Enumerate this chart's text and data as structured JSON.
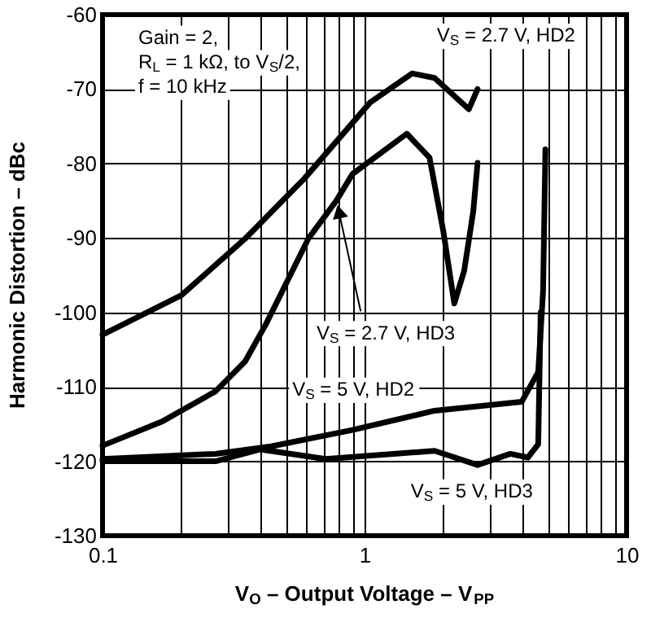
{
  "chart_data": {
    "type": "line",
    "xlabel": "V$_{O}$ – Output Voltage – V$_{PP}$",
    "ylabel": "Harmonic Distortion – dBc",
    "annotations": [
      "Gain = 2,",
      "R$_{L}$ = 1 kΩ, to V$_{S}$/2,",
      "f = 10 kHz"
    ],
    "series": [
      {
        "name": "V$_{S}$ = 2.7 V, HD2",
        "color": "#000000",
        "x": [
          0.1,
          0.2,
          0.35,
          0.59,
          1.05,
          1.52,
          1.85,
          2.5,
          2.7
        ],
        "values": [
          -103,
          -97.7,
          -90.1,
          -82,
          -71.8,
          -67.9,
          -68.5,
          -72.7,
          -70
        ]
      },
      {
        "name": "V$_{S}$ = 2.7 V, HD3",
        "color": "#000000",
        "x": [
          0.1,
          0.168,
          0.27,
          0.35,
          0.42,
          0.61,
          0.78,
          0.9,
          1.45,
          1.77,
          2.0,
          2.2,
          2.4,
          2.6,
          2.7
        ],
        "values": [
          -117.9,
          -114.7,
          -110.6,
          -106.6,
          -101.6,
          -90.1,
          -85,
          -81.4,
          -76,
          -79.2,
          -89.2,
          -98.8,
          -94.4,
          -86.4,
          -79.9
        ]
      },
      {
        "name": "V$_{S}$ = 5 V, HD2",
        "color": "#000000",
        "x": [
          0.1,
          0.27,
          0.44,
          0.9,
          1.85,
          3.98,
          4.6,
          4.8,
          4.9
        ],
        "values": [
          -119.7,
          -119,
          -118,
          -115.8,
          -113.2,
          -112,
          -108,
          -97.2,
          -78.1
        ]
      },
      {
        "name": "V$_{S}$ = 5 V, HD3",
        "color": "#000000",
        "x": [
          0.1,
          0.27,
          0.4,
          0.71,
          1.85,
          2.7,
          3.6,
          4.2,
          4.6,
          4.7
        ],
        "values": [
          -120,
          -120,
          -118.4,
          -119.7,
          -118.6,
          -120.5,
          -119,
          -119.5,
          -117.7,
          -100
        ]
      }
    ],
    "xlim": [
      0.1,
      10
    ],
    "xticks": [
      0.1,
      {
        "value": 0.2,
        "label": null
      },
      {
        "value": 0.3,
        "label": null
      },
      {
        "value": 0.4,
        "label": null
      },
      {
        "value": 0.5,
        "label": null
      },
      {
        "value": 0.6,
        "label": null
      },
      {
        "value": 0.7,
        "label": null
      },
      {
        "value": 0.8,
        "label": null
      },
      {
        "value": 0.9,
        "label": null
      },
      1,
      {
        "value": 2,
        "label": null
      },
      {
        "value": 3,
        "label": null
      },
      {
        "value": 4,
        "label": null
      },
      {
        "value": 5,
        "label": null
      },
      {
        "value": 6,
        "label": null
      },
      {
        "value": 7,
        "label": null
      },
      {
        "value": 8,
        "label": null
      },
      {
        "value": 9,
        "label": null
      },
      10
    ],
    "ylim": [
      -130,
      -60
    ],
    "yticks": [
      -130,
      -120,
      -110,
      -100,
      -90,
      -80,
      -70,
      -60
    ],
    "log": "x",
    "grid": true,
    "line_style": "solid",
    "marker": "none"
  }
}
